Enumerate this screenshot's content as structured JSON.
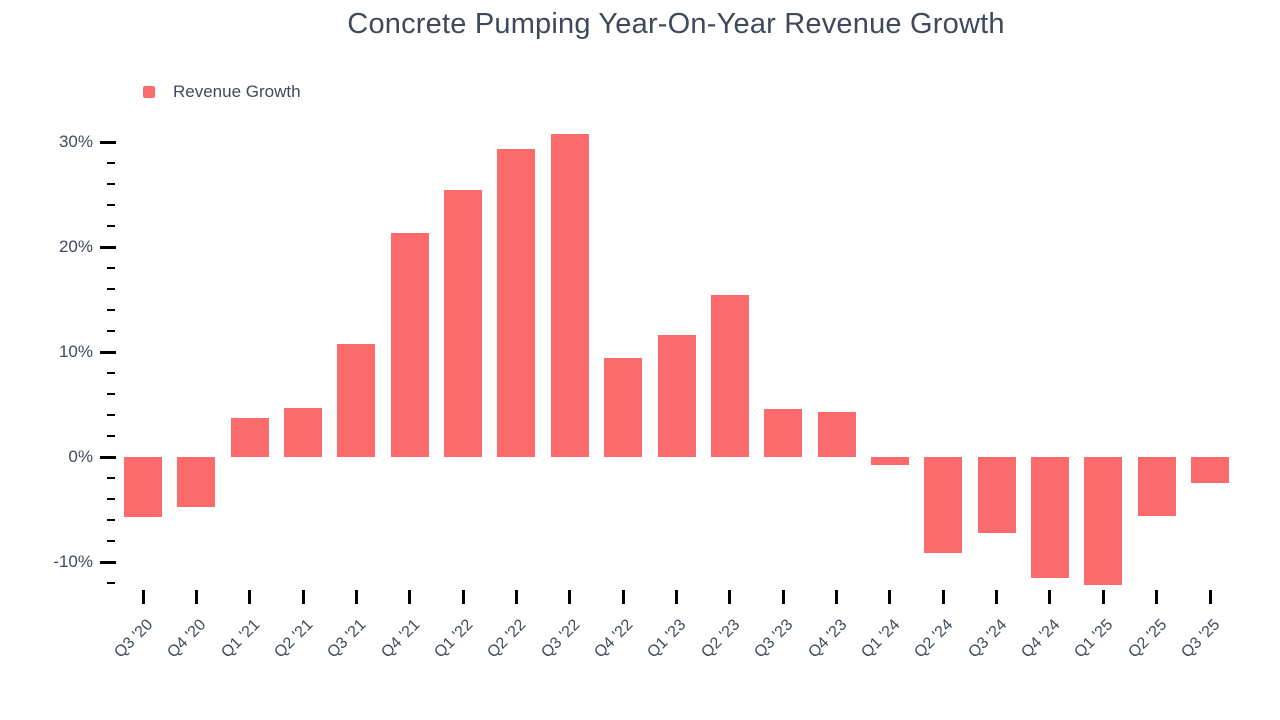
{
  "title": "Concrete Pumping Year-On-Year Revenue Growth",
  "legend": {
    "label": "Revenue Growth",
    "swatch_color": "#FC6B6B"
  },
  "colors": {
    "bar": "#FC6B6B",
    "text": "#3E4A5C",
    "tick": "#000000",
    "background": "#FFFFFF"
  },
  "chart_data": {
    "type": "bar",
    "title": "Concrete Pumping Year-On-Year Revenue Growth",
    "series_name": "Revenue Growth",
    "categories": [
      "Q3 '20",
      "Q4 '20",
      "Q1 '21",
      "Q2 '21",
      "Q3 '21",
      "Q4 '21",
      "Q1 '22",
      "Q2 '22",
      "Q3 '22",
      "Q4 '22",
      "Q1 '23",
      "Q2 '23",
      "Q3 '23",
      "Q4 '23",
      "Q1 '24",
      "Q2 '24",
      "Q3 '24",
      "Q4 '24",
      "Q1 '25",
      "Q2 '25",
      "Q3 '25"
    ],
    "values": [
      -5.7,
      -4.8,
      3.7,
      4.7,
      10.8,
      21.3,
      25.4,
      29.3,
      30.8,
      9.4,
      11.6,
      15.4,
      4.6,
      4.3,
      -0.8,
      -9.1,
      -7.2,
      -11.5,
      -12.2,
      -5.6,
      -2.5
    ],
    "xlabel": "",
    "ylabel": "",
    "ylim": [
      -12,
      30
    ],
    "y_major_ticks": [
      30,
      20,
      10,
      0,
      -10
    ],
    "y_major_tick_labels": [
      "30%",
      "20%",
      "10%",
      "0%",
      "-10%"
    ],
    "y_minor_tick_step": 2,
    "grid": false,
    "legend_position": "top-left",
    "x_tick_label_rotation": -45
  }
}
